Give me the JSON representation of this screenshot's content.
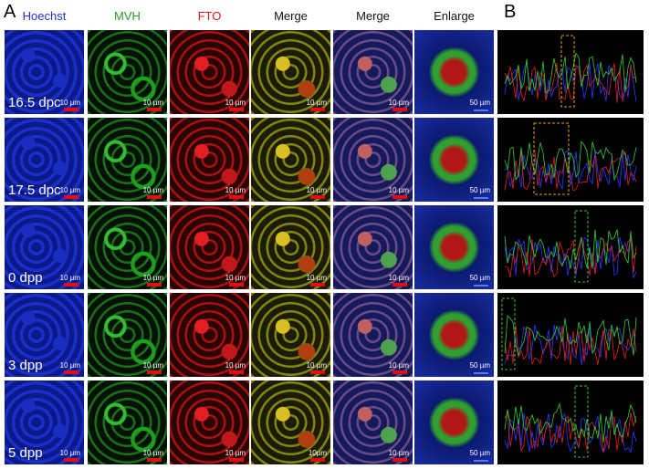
{
  "panel_labels": {
    "a": "A",
    "b": "B"
  },
  "columns": [
    "Hoechst",
    "MVH",
    "FTO",
    "Merge",
    "Merge",
    "Enlarge"
  ],
  "rows": [
    {
      "label": "16.5 dpc",
      "scale_bars": [
        "10 µm",
        "10 µm",
        "10 µm",
        "10 µm",
        "10 µm",
        "50 µm"
      ]
    },
    {
      "label": "17.5 dpc",
      "scale_bars": [
        "10 µm",
        "10 µm",
        "10 µm",
        "10 µm",
        "10 µm",
        "50 µm"
      ]
    },
    {
      "label": "0 dpp",
      "scale_bars": [
        "10 µm",
        "10 µm",
        "10 µm",
        "10 µm",
        "10 µm",
        "50 µm"
      ]
    },
    {
      "label": "3 dpp",
      "scale_bars": [
        "10 µm",
        "10 µm",
        "10 µm",
        "10 µm",
        "10 µm",
        "50 µm"
      ]
    },
    {
      "label": "5 dpp",
      "scale_bars": [
        "10 µm",
        "10 µm",
        "10 µm",
        "10µm",
        "10 µm",
        "50 µm"
      ]
    }
  ]
}
